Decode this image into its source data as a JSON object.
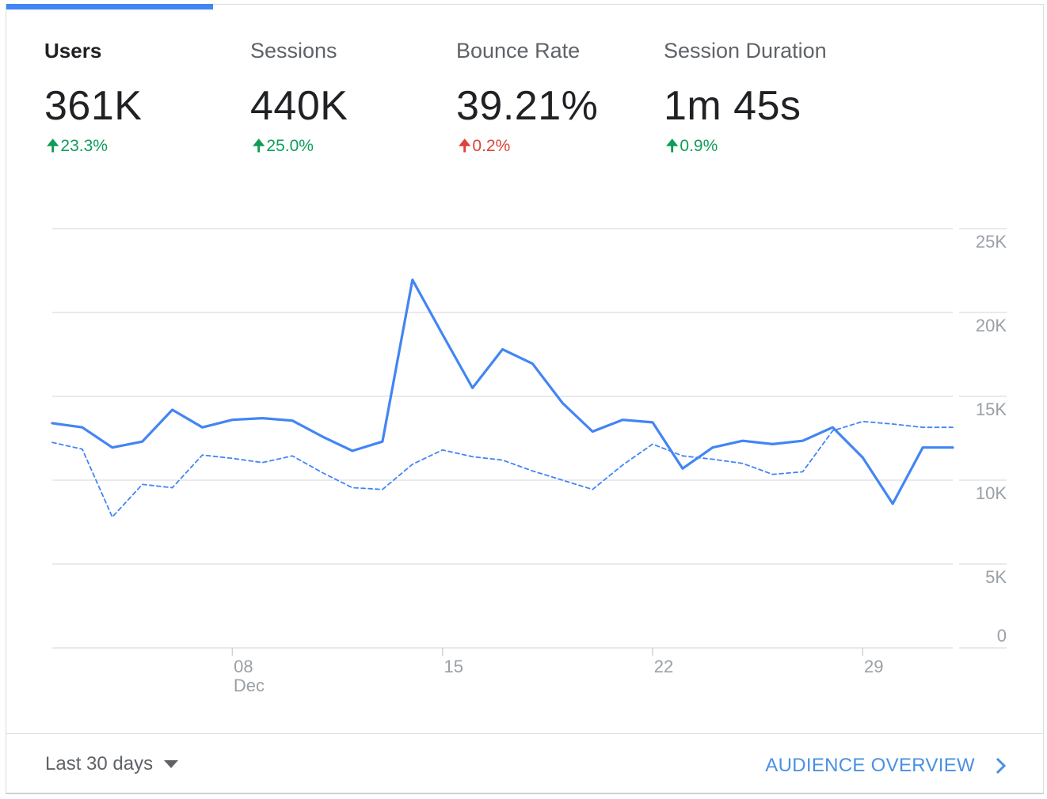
{
  "metrics": [
    {
      "label": "Users",
      "value": "361K",
      "change": "23.3%",
      "direction": "up"
    },
    {
      "label": "Sessions",
      "value": "440K",
      "change": "25.0%",
      "direction": "up"
    },
    {
      "label": "Bounce Rate",
      "value": "39.21%",
      "change": "0.2%",
      "direction": "up"
    },
    {
      "label": "Session Duration",
      "value": "1m 45s",
      "change": "0.9%",
      "direction": "up"
    }
  ],
  "colors": {
    "accent": "#4285f4",
    "positive": "#0f9d58",
    "negative": "#db4437",
    "link": "#4a90e2"
  },
  "chart_data": {
    "type": "line",
    "y_ticks": [
      "25K",
      "20K",
      "15K",
      "10K",
      "5K",
      "0"
    ],
    "ylim": [
      0,
      25000
    ],
    "x_ticks": [
      {
        "label": "08",
        "sublabel": "Dec",
        "day": 8
      },
      {
        "label": "15",
        "sublabel": "",
        "day": 15
      },
      {
        "label": "22",
        "sublabel": "",
        "day": 22
      },
      {
        "label": "29",
        "sublabel": "",
        "day": 29
      }
    ],
    "days": [
      2,
      3,
      4,
      5,
      6,
      7,
      8,
      9,
      10,
      11,
      12,
      13,
      14,
      15,
      16,
      17,
      18,
      19,
      20,
      21,
      22,
      23,
      24,
      25,
      26,
      27,
      28,
      29,
      30,
      31,
      32
    ],
    "grid": true,
    "series": [
      {
        "style": "solid",
        "values": [
          13400,
          13150,
          11950,
          12300,
          14200,
          13150,
          13600,
          13700,
          13550,
          12600,
          11750,
          12300,
          21950,
          18700,
          15500,
          17800,
          16950,
          14600,
          12900,
          13600,
          13450,
          10700,
          11950,
          12350,
          12150,
          12350,
          13150,
          11350,
          8600,
          11950,
          11950
        ]
      },
      {
        "style": "dashed",
        "values": [
          12250,
          11850,
          7800,
          9750,
          9550,
          11500,
          11300,
          11050,
          11450,
          10450,
          9550,
          9450,
          10950,
          11800,
          11400,
          11200,
          10550,
          10000,
          9450,
          10900,
          12150,
          11450,
          11250,
          11000,
          10350,
          10500,
          12950,
          13500,
          13350,
          13150,
          13150
        ]
      }
    ]
  },
  "footer": {
    "range_label": "Last 30 days",
    "overview_label": "AUDIENCE OVERVIEW"
  }
}
